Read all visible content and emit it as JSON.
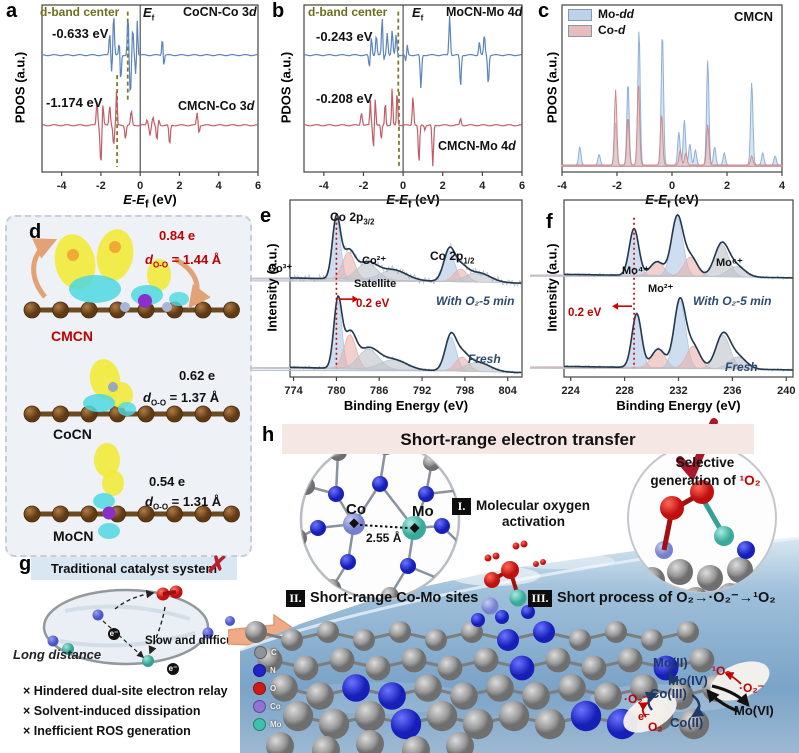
{
  "panels": {
    "a": {
      "letter": "a",
      "ylabel": "PDOS (a.u.)",
      "xlabel_pre": "E-E",
      "xlabel_sub": "f",
      "xlabel_post": " (eV)",
      "dband": "d-band center",
      "ef_it": "E",
      "ef_sub": "f",
      "e1": "-0.633 eV",
      "s1": "CoCN-Co 3",
      "s1_it": "d",
      "e2": "-1.174 eV",
      "s2": "CMCN-Co 3",
      "s2_it": "d"
    },
    "b": {
      "letter": "b",
      "ylabel": "PDOS (a.u.)",
      "xlabel_pre": "E-E",
      "xlabel_sub": "f",
      "xlabel_post": " (eV)",
      "dband": "d-band center",
      "ef_it": "E",
      "ef_sub": "f",
      "e1": "-0.243 eV",
      "s1": "MoCN-Mo 4",
      "s1_it": "d",
      "e2": "-0.208 eV",
      "s2": "CMCN-Mo 4",
      "s2_it": "d"
    },
    "c": {
      "letter": "c",
      "ylabel": "PDOS (a.u.)",
      "xlabel_pre": "E-E",
      "xlabel_sub": "f",
      "xlabel_post": " (eV)",
      "leg1": "Mo-",
      "leg1_it": "d",
      "leg2": "Co-",
      "leg2_it": "d",
      "tag": "CMCN"
    },
    "d": {
      "letter": "d",
      "q1": "0.84 e",
      "d1_it": "d",
      "d1_sub": "O-O",
      "d1_val": " = 1.44 Å",
      "n1": "CMCN",
      "q2": "0.62 e",
      "d2_it": "d",
      "d2_sub": "O-O",
      "d2_val": " = 1.37 Å",
      "n2": "CoCN",
      "q3": "0.54 e",
      "d3_it": "d",
      "d3_sub": "O-O",
      "d3_val": " = 1.31 Å",
      "n3": "MoCN"
    },
    "e": {
      "letter": "e",
      "ylabel": "Intensity (a.u.)",
      "xlabel": "Binding Energy (eV)",
      "p32": "Co 2p",
      "p32_sub": "3/2",
      "p12": "Co 2p",
      "p12_sub": "1/2",
      "co3": "Co³⁺",
      "co2": "Co²⁺",
      "sat": "Satellite",
      "shift": "0.2 eV",
      "t1": "With O₂-5 min",
      "t2": "Fresh"
    },
    "f": {
      "letter": "f",
      "ylabel": "Intensity (a.u.)",
      "xlabel": "Binding Energy (eV)",
      "mo4": "Mo⁴⁺",
      "mo2": "Mo²⁺",
      "mo6": "Mo⁶⁺",
      "shift": "0.2 eV",
      "t1": "With O₂-5 min",
      "t2": "Fresh"
    },
    "g": {
      "letter": "g",
      "title": "Traditional catalyst system",
      "cross": "✗",
      "long": "Long distance",
      "slow": "Slow and difficult",
      "e_sym": "e⁻",
      "bullet_mark": "×",
      "bullets": [
        "Hindered dual-site electron relay",
        "Solvent-induced dissipation",
        "Inefficient ROS generation"
      ]
    },
    "h": {
      "letter": "h",
      "title": "Short-range electron transfer",
      "co": "Co",
      "mo": "Mo",
      "dist": "2.55 Å",
      "i_num": "I.",
      "i_text1": "Molecular oxygen",
      "i_text2": "activation",
      "sel1": "Selective",
      "sel2_pre": "generation of ",
      "sel2_o2": "¹O₂",
      "ii_num": "II.",
      "ii_text": "Short-range Co-Mo sites",
      "iii_num": "III.",
      "iii_text": "Short process of O₂→·O₂⁻→¹O₂",
      "legend": [
        {
          "label": "C",
          "color": "#8f9499"
        },
        {
          "label": "N",
          "color": "#2026c8"
        },
        {
          "label": "O",
          "color": "#d01818"
        },
        {
          "label": "Co",
          "color": "#9173d8"
        },
        {
          "label": "Mo",
          "color": "#3fbfae"
        }
      ],
      "cycle": {
        "mo2": "Mo(II)",
        "mo4": "Mo(IV)",
        "co3": "Co(III)",
        "co2": "Co(II)",
        "mo6": "Mo(VI)",
        "so2": "¹O₂",
        "sup_r": "·O₂⁻",
        "sup_l": "·O₂⁻",
        "e": "e⁻",
        "o2": "O₂"
      }
    }
  },
  "chart_data": [
    {
      "id": "a",
      "type": "line",
      "xlabel": "E-Ef (eV)",
      "ylabel": "PDOS (a.u.)",
      "xrange": [
        -5,
        6
      ],
      "xticks": [
        -4,
        -2,
        0,
        2,
        4,
        6
      ],
      "fermi": 0,
      "dashed": [
        {
          "x": -0.633,
          "f0": 0.04,
          "f1": 0.58,
          "color": "#7c7a28"
        },
        {
          "x": -1.174,
          "f0": 0.42,
          "f1": 0.97,
          "color": "#7c7a28"
        }
      ],
      "series": [
        {
          "name": "CoCN-Co 3d",
          "color": "#5b84bd",
          "baseline": 0.3,
          "amp": 0.27,
          "up": [
            [
              -1.55,
              0.5,
              0.05
            ],
            [
              -1.35,
              0.92,
              0.05
            ],
            [
              -1.05,
              0.45,
              0.05
            ],
            [
              -0.62,
              0.88,
              0.05
            ],
            [
              -0.38,
              0.6,
              0.05
            ],
            [
              -0.15,
              0.85,
              0.04
            ],
            [
              1.15,
              0.72,
              0.05
            ]
          ],
          "down": [
            [
              -1.45,
              0.38,
              0.05
            ],
            [
              -1.0,
              0.72,
              0.05
            ],
            [
              -0.5,
              0.88,
              0.06
            ],
            [
              -0.22,
              0.45,
              0.05
            ],
            [
              1.18,
              0.58,
              0.05
            ]
          ]
        },
        {
          "name": "CMCN-Co 3d",
          "color": "#c05d68",
          "baseline": 0.72,
          "amp": 0.27,
          "up": [
            [
              -2.2,
              0.55,
              0.05
            ],
            [
              -1.9,
              0.5,
              0.05
            ],
            [
              -1.55,
              0.45,
              0.05
            ],
            [
              -1.2,
              0.8,
              0.04
            ],
            [
              -0.45,
              0.55,
              0.05
            ],
            [
              0.35,
              0.12,
              0.05
            ],
            [
              0.65,
              0.18,
              0.05
            ],
            [
              0.95,
              0.12,
              0.05
            ],
            [
              2.9,
              0.28,
              0.05
            ]
          ],
          "down": [
            [
              -2.0,
              0.85,
              0.06
            ],
            [
              -1.35,
              0.45,
              0.05
            ],
            [
              -0.75,
              0.3,
              0.05
            ],
            [
              -0.45,
              0.25,
              0.04
            ],
            [
              0.5,
              0.22,
              0.05
            ],
            [
              0.85,
              0.35,
              0.05
            ],
            [
              1.5,
              0.45,
              0.05
            ],
            [
              3.0,
              0.18,
              0.04
            ]
          ]
        }
      ]
    },
    {
      "id": "b",
      "type": "line",
      "xlabel": "E-Ef (eV)",
      "ylabel": "PDOS (a.u.)",
      "xrange": [
        -5,
        6
      ],
      "xticks": [
        -4,
        -2,
        0,
        2,
        4,
        6
      ],
      "fermi": 0,
      "dashed": [
        {
          "x": -0.243,
          "f0": 0.04,
          "f1": 0.52,
          "color": "#7c7a28"
        },
        {
          "x": -0.208,
          "f0": 0.52,
          "f1": 0.97,
          "color": "#7c7a28"
        }
      ],
      "series": [
        {
          "name": "MoCN-Mo 4d",
          "color": "#5b84bd",
          "baseline": 0.3,
          "amp": 0.27,
          "up": [
            [
              -1.6,
              0.4,
              0.05
            ],
            [
              -1.35,
              0.45,
              0.05
            ],
            [
              -1.05,
              0.92,
              0.05
            ],
            [
              -0.8,
              0.5,
              0.05
            ],
            [
              -0.55,
              0.55,
              0.05
            ],
            [
              -0.35,
              0.45,
              0.05
            ],
            [
              0.2,
              0.28,
              0.05
            ],
            [
              2.35,
              0.88,
              0.05
            ],
            [
              3.85,
              0.3,
              0.05
            ],
            [
              4.1,
              0.45,
              0.05
            ]
          ],
          "down": [
            [
              -1.7,
              0.28,
              0.05
            ],
            [
              -1.0,
              0.25,
              0.05
            ],
            [
              0.15,
              0.22,
              0.05
            ],
            [
              0.9,
              0.75,
              0.05
            ],
            [
              2.9,
              0.7,
              0.05
            ],
            [
              4.3,
              0.65,
              0.05
            ]
          ]
        },
        {
          "name": "CMCN-Mo 4d",
          "color": "#c05d68",
          "baseline": 0.72,
          "amp": 0.27,
          "up": [
            [
              -2.1,
              0.28,
              0.06
            ],
            [
              -1.65,
              0.55,
              0.04
            ],
            [
              -1.4,
              0.6,
              0.04
            ],
            [
              -0.9,
              0.55,
              0.04
            ],
            [
              -0.55,
              0.85,
              0.04
            ],
            [
              -0.3,
              0.8,
              0.04
            ],
            [
              0.5,
              0.65,
              0.05
            ],
            [
              1.1,
              0.45,
              0.04
            ],
            [
              2.9,
              0.5,
              0.05
            ]
          ],
          "down": [
            [
              -1.5,
              0.5,
              0.04
            ],
            [
              -1.1,
              0.35,
              0.04
            ],
            [
              0.8,
              0.85,
              0.05
            ],
            [
              1.1,
              0.55,
              0.04
            ],
            [
              1.5,
              0.92,
              0.05
            ],
            [
              2.9,
              0.35,
              0.05
            ]
          ]
        }
      ]
    },
    {
      "id": "c",
      "type": "area",
      "xlabel": "E-Ef (eV)",
      "ylabel": "PDOS (a.u.)",
      "tag": "CMCN",
      "xrange": [
        -4,
        4
      ],
      "xticks": [
        -4,
        -2,
        0,
        2,
        4
      ],
      "baseline": 0.965,
      "amp": 0.9,
      "peak_w": 0.06,
      "series": [
        {
          "name": "Mo-d",
          "color": "#8fb0d8",
          "fill": "#bcd2ea",
          "peaks": [
            [
              -3.35,
              0.12
            ],
            [
              -2.65,
              0.07
            ],
            [
              -2.05,
              0.28
            ],
            [
              -1.6,
              0.55
            ],
            [
              -1.2,
              0.9
            ],
            [
              -0.35,
              0.88
            ],
            [
              0.25,
              0.22
            ],
            [
              0.45,
              0.3
            ],
            [
              0.65,
              0.14
            ],
            [
              0.85,
              0.1
            ],
            [
              1.3,
              0.7
            ],
            [
              1.55,
              0.12
            ],
            [
              1.9,
              0.08
            ],
            [
              2.9,
              0.55
            ],
            [
              3.3,
              0.08
            ],
            [
              3.75,
              0.06
            ]
          ]
        },
        {
          "name": "Co-d",
          "color": "#cf8b8b",
          "fill": "#e7bcbc",
          "peaks": [
            [
              -2.05,
              0.5
            ],
            [
              -1.6,
              0.32
            ],
            [
              -1.22,
              0.55
            ],
            [
              -0.38,
              0.34
            ],
            [
              0.3,
              0.1
            ],
            [
              0.5,
              0.08
            ],
            [
              1.3,
              0.27
            ],
            [
              2.9,
              0.06
            ]
          ]
        }
      ]
    },
    {
      "id": "e",
      "type": "xps",
      "xlabel": "Binding Energy (eV)",
      "ylabel": "Intensity (a.u.)",
      "xrange": [
        773.5,
        806
      ],
      "xticks": [
        774,
        780,
        786,
        792,
        798,
        804
      ],
      "ref": {
        "x": 780,
        "f0": 0.1,
        "f1": 0.95,
        "arrow_f": 0.56,
        "dir": 1
      },
      "shift": "0.2 eV",
      "traces": [
        {
          "name": "With O₂-5 min",
          "b0": 0.44,
          "b1": 0.47,
          "amp": 0.36,
          "noise": 2.4,
          "components": [
            [
              780,
              0.95,
              0.8,
              "b"
            ],
            [
              781.7,
              0.42,
              1.2,
              "p"
            ],
            [
              784.3,
              0.26,
              2.0,
              "g"
            ],
            [
              788,
              0.16,
              2.6,
              "g"
            ],
            [
              795.8,
              0.48,
              1.1,
              "b"
            ],
            [
              797.4,
              0.2,
              1.3,
              "p"
            ],
            [
              799.8,
              0.15,
              2.4,
              "g"
            ]
          ]
        },
        {
          "name": "Fresh",
          "b0": 0.945,
          "b1": 0.975,
          "amp": 0.4,
          "noise": 1.1,
          "components": [
            [
              780.2,
              0.95,
              0.8,
              "b"
            ],
            [
              781.9,
              0.48,
              1.2,
              "p"
            ],
            [
              784.5,
              0.28,
              2.0,
              "g"
            ],
            [
              788,
              0.14,
              2.6,
              "g"
            ],
            [
              796,
              0.48,
              1.1,
              "b"
            ],
            [
              797.6,
              0.2,
              1.3,
              "p"
            ],
            [
              799.8,
              0.13,
              2.4,
              "g"
            ]
          ]
        }
      ]
    },
    {
      "id": "f",
      "type": "xps",
      "xlabel": "Binding Energy (eV)",
      "ylabel": "Intensity (a.u.)",
      "xrange": [
        223.5,
        240.5
      ],
      "xticks": [
        224,
        228,
        232,
        236,
        240
      ],
      "ref": {
        "x": 228.7,
        "f0": 0.1,
        "f1": 0.95,
        "arrow_f": 0.6,
        "dir": -1
      },
      "shift": "0.2 eV",
      "traces": [
        {
          "name": "With O₂-5 min",
          "b0": 0.42,
          "b1": 0.44,
          "amp": 0.33,
          "noise": 1.0,
          "components": [
            [
              228.7,
              0.8,
              0.5,
              "b"
            ],
            [
              230.4,
              0.24,
              0.7,
              "p"
            ],
            [
              231.9,
              1.0,
              0.6,
              "b"
            ],
            [
              232.9,
              0.33,
              0.7,
              "p"
            ],
            [
              235.2,
              0.55,
              0.75,
              "g"
            ],
            [
              236.3,
              0.18,
              0.9,
              "g"
            ]
          ]
        },
        {
          "name": "Fresh",
          "b0": 0.94,
          "b1": 0.96,
          "amp": 0.38,
          "noise": 1.0,
          "components": [
            [
              228.9,
              0.8,
              0.5,
              "b"
            ],
            [
              230.5,
              0.28,
              0.7,
              "p"
            ],
            [
              232.1,
              1.0,
              0.6,
              "b"
            ],
            [
              233.1,
              0.33,
              0.7,
              "p"
            ],
            [
              235.3,
              0.5,
              0.75,
              "g"
            ],
            [
              236.4,
              0.18,
              0.9,
              "g"
            ]
          ]
        }
      ]
    }
  ]
}
